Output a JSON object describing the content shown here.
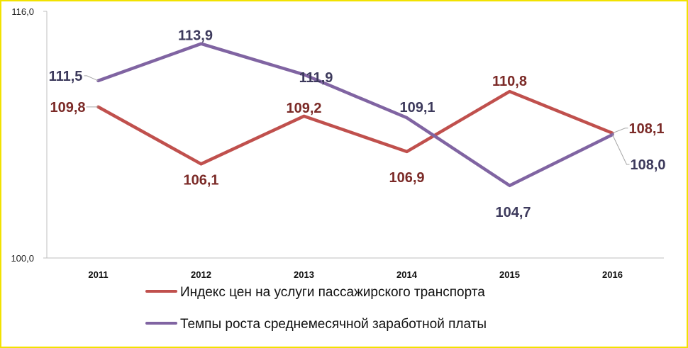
{
  "chart_data": {
    "type": "line",
    "categories": [
      "2011",
      "2012",
      "2013",
      "2014",
      "2015",
      "2016"
    ],
    "ylim": [
      100,
      116
    ],
    "y_tick_labels": [
      "116,0",
      "100,0"
    ],
    "grid": false,
    "legend_placement": "bottom",
    "series": [
      {
        "name": "Индекс цен на услуги пассажирского транспорта",
        "color": "#c0504d",
        "label_color": "#7b2a27",
        "values": [
          109.8,
          106.1,
          109.2,
          106.9,
          110.8,
          108.1
        ],
        "labels": [
          "109,8",
          "106,1",
          "109,2",
          "106,9",
          "110,8",
          "108,1"
        ]
      },
      {
        "name": "Темпы роста среднемесячной заработной платы",
        "color": "#8064a2",
        "label_color": "#3d3a5c",
        "values": [
          111.5,
          113.9,
          111.9,
          109.1,
          104.7,
          108.0
        ],
        "labels": [
          "111,5",
          "113,9",
          "111,9",
          "109,1",
          "104,7",
          "108,0"
        ]
      }
    ]
  }
}
